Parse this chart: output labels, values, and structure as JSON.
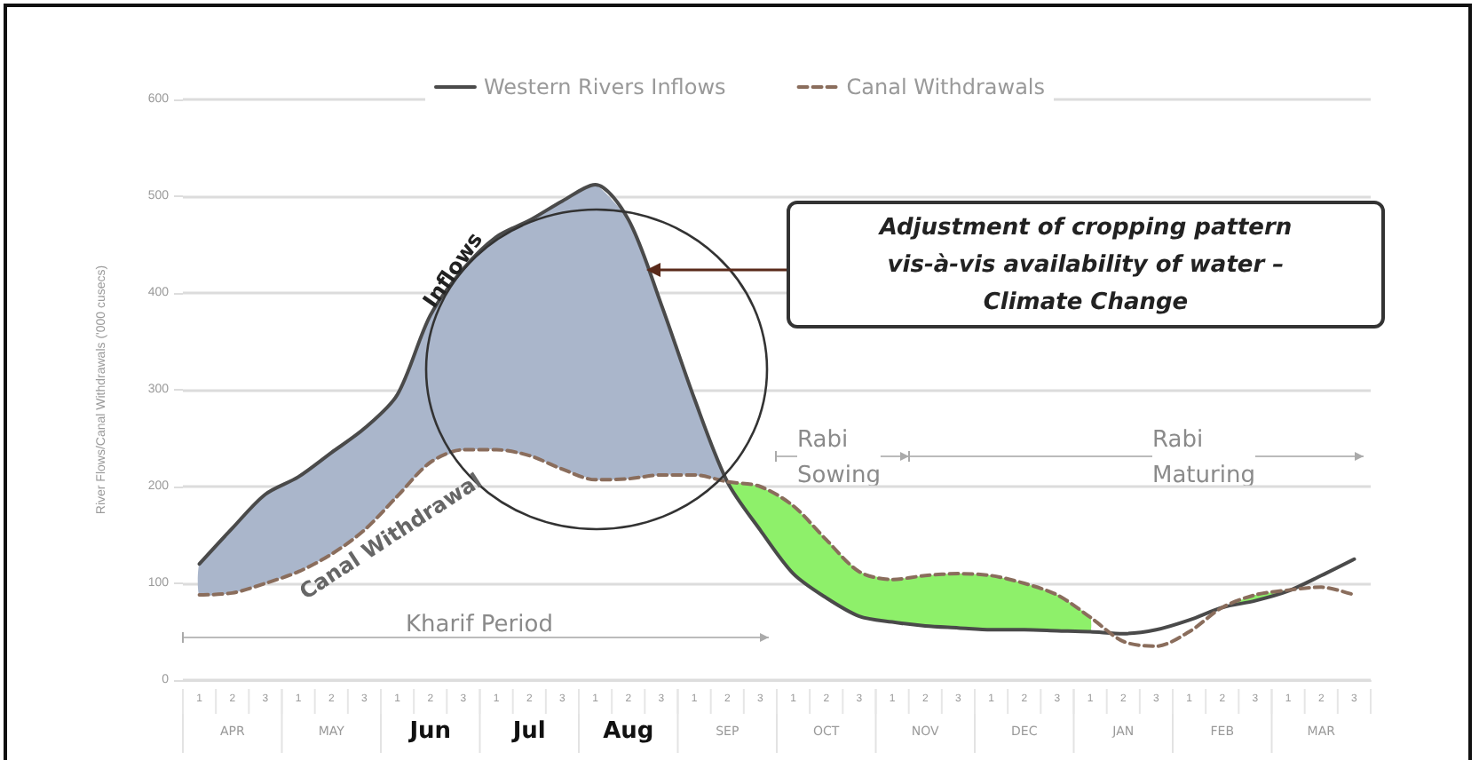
{
  "chart_data": {
    "type": "line",
    "ylabel": "River Flows/Canal Withdrawals ('000 cusecs)",
    "categories": [
      "1",
      "2",
      "3",
      "1",
      "2",
      "3",
      "1",
      "2",
      "3",
      "1",
      "2",
      "3",
      "1",
      "2",
      "3",
      "1",
      "2",
      "3",
      "1",
      "2",
      "3",
      "1",
      "2",
      "3",
      "1",
      "2",
      "3",
      "1",
      "2",
      "3",
      "1",
      "2",
      "3",
      "1",
      "2",
      "3"
    ],
    "series": [
      {
        "name": "Western Rivers Inflows",
        "color": "#4a4a4a",
        "line_style": "solid",
        "values": [
          120,
          157,
          192,
          210,
          235,
          260,
          295,
          377,
          425,
          458,
          475,
          495,
          512,
          476,
          388,
          291,
          205,
          155,
          110,
          85,
          66,
          60,
          56,
          54,
          52,
          52,
          51,
          50,
          48,
          52,
          62,
          75,
          82,
          92,
          108,
          125
        ],
        "lower": [
          88,
          90,
          100,
          112,
          130,
          155,
          190,
          225,
          238,
          238,
          232,
          218,
          207,
          208,
          212,
          212,
          205,
          null,
          null,
          null,
          null,
          null,
          null,
          null,
          null,
          null,
          null,
          null,
          null,
          null,
          null,
          null,
          null,
          null,
          null,
          null
        ],
        "upper": [
          120,
          157,
          192,
          210,
          235,
          260,
          295,
          377,
          425,
          458,
          475,
          495,
          512,
          476,
          388,
          291,
          205,
          null,
          null,
          null,
          null,
          null,
          null,
          null,
          null,
          null,
          null,
          null,
          null,
          null,
          null,
          null,
          null,
          null,
          null,
          null
        ]
      },
      {
        "name": "Canal Withdrawals",
        "color": "#8a6d5c",
        "line_style": "dashed",
        "values": [
          88,
          90,
          100,
          112,
          130,
          155,
          190,
          225,
          238,
          238,
          232,
          218,
          207,
          208,
          212,
          212,
          205,
          200,
          180,
          145,
          112,
          104,
          108,
          110,
          108,
          100,
          88,
          65,
          40,
          35,
          50,
          75,
          88,
          93,
          96,
          88
        ],
        "lower": [
          null,
          null,
          null,
          null,
          null,
          null,
          null,
          null,
          null,
          null,
          null,
          null,
          null,
          null,
          null,
          null,
          205,
          155,
          110,
          85,
          66,
          60,
          56,
          54,
          52,
          52,
          51,
          50,
          null,
          null,
          null,
          75,
          82,
          92,
          null,
          null
        ],
        "upper": [
          null,
          null,
          null,
          null,
          null,
          null,
          null,
          null,
          null,
          null,
          null,
          null,
          null,
          null,
          null,
          null,
          205,
          200,
          180,
          145,
          112,
          104,
          108,
          110,
          108,
          100,
          88,
          65,
          null,
          null,
          null,
          75,
          88,
          93,
          null,
          null
        ]
      }
    ],
    "ylim": [
      0,
      600
    ],
    "yticks": [
      0,
      100,
      200,
      300,
      400,
      500,
      600
    ],
    "grid": "y",
    "legend": "top",
    "annotations": [
      "Adjustment of cropping pattern\nvis-à-vis availability of water –\nClimate Change",
      "Inflows",
      "Canal Withdrawal",
      "Kharif Period",
      "Rabi\nSowing",
      "Rabi\nMaturing",
      "APR",
      "MAY",
      "Jun",
      "Jul",
      "Aug",
      "SEP",
      "OCT",
      "NOV",
      "DEC",
      "JAN",
      "FEB",
      "MAR"
    ]
  }
}
